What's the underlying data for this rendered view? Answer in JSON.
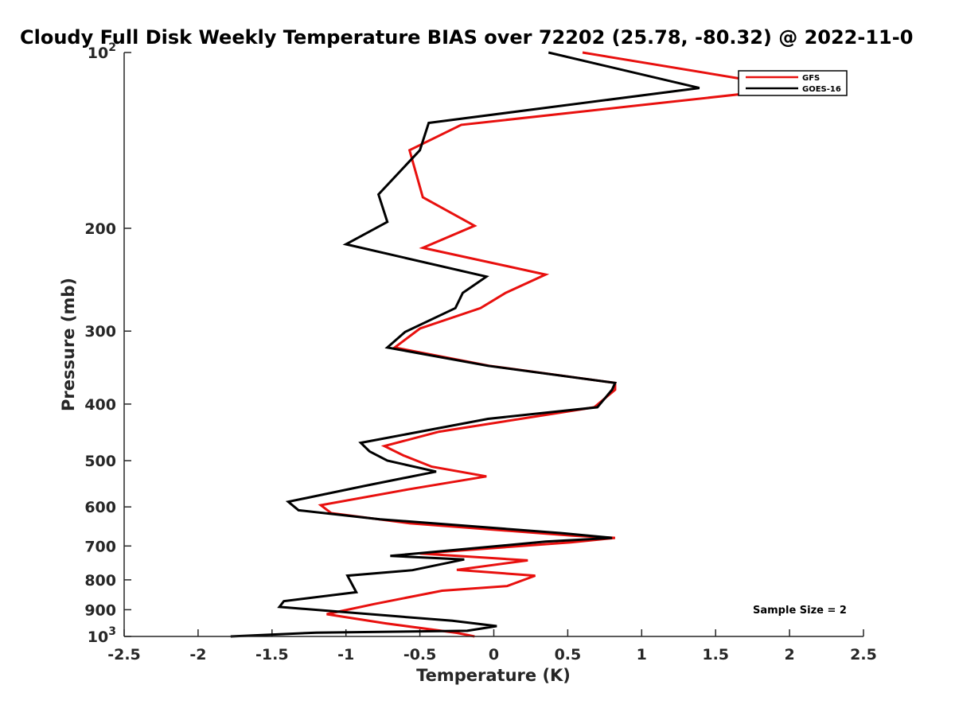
{
  "chart_data": {
    "type": "line",
    "title": "Cloudy Full Disk Weekly Temperature BIAS over 72202 (25.78, -80.32) @ 2022-11-0",
    "xlabel": "Temperature (K)",
    "ylabel": "Pressure (mb)",
    "xlim": [
      -2.5,
      2.5
    ],
    "ylim": [
      100,
      1000
    ],
    "yscale": "log",
    "yreversed": true,
    "xticks": [
      "-2.5",
      "-2",
      "-1.5",
      "-1",
      "-0.5",
      "0",
      "0.5",
      "1",
      "1.5",
      "2",
      "2.5"
    ],
    "yticks": [
      {
        "value": 100,
        "label": "10",
        "sup": "2"
      },
      {
        "value": 200,
        "label": "200",
        "sup": ""
      },
      {
        "value": 300,
        "label": "300",
        "sup": ""
      },
      {
        "value": 400,
        "label": "400",
        "sup": ""
      },
      {
        "value": 500,
        "label": "500",
        "sup": ""
      },
      {
        "value": 600,
        "label": "600",
        "sup": ""
      },
      {
        "value": 700,
        "label": "700",
        "sup": ""
      },
      {
        "value": 800,
        "label": "800",
        "sup": ""
      },
      {
        "value": 900,
        "label": "900",
        "sup": ""
      },
      {
        "value": 1000,
        "label": "10",
        "sup": "3"
      }
    ],
    "legend_position": "top-right",
    "annotation": "Sample Size = 2",
    "series": [
      {
        "name": "GFS",
        "color": "#e8100e",
        "points": [
          [
            0.6,
            100
          ],
          [
            2.05,
            115
          ],
          [
            -0.22,
            133
          ],
          [
            -0.57,
            147
          ],
          [
            -0.48,
            177
          ],
          [
            -0.13,
            198
          ],
          [
            -0.48,
            216
          ],
          [
            0.35,
            240
          ],
          [
            0.08,
            258
          ],
          [
            -0.09,
            274
          ],
          [
            -0.5,
            297
          ],
          [
            -0.67,
            320
          ],
          [
            -0.03,
            344
          ],
          [
            0.82,
            368
          ],
          [
            0.82,
            378
          ],
          [
            0.68,
            405
          ],
          [
            -0.37,
            446
          ],
          [
            -0.74,
            472
          ],
          [
            -0.61,
            490
          ],
          [
            -0.42,
            512
          ],
          [
            -0.05,
            532
          ],
          [
            -0.58,
            560
          ],
          [
            -1.17,
            596
          ],
          [
            -1.1,
            615
          ],
          [
            -0.57,
            640
          ],
          [
            0.53,
            672
          ],
          [
            0.82,
            678
          ],
          [
            0.52,
            690
          ],
          [
            -0.5,
            721
          ],
          [
            0.23,
            741
          ],
          [
            -0.25,
            769
          ],
          [
            0.28,
            787
          ],
          [
            0.09,
            820
          ],
          [
            -0.35,
            835
          ],
          [
            -0.81,
            880
          ],
          [
            -1.13,
            916
          ],
          [
            -0.73,
            950
          ],
          [
            -0.25,
            986
          ],
          [
            -0.13,
            1000
          ]
        ]
      },
      {
        "name": "GOES-16",
        "color": "#000000",
        "points": [
          [
            0.37,
            100
          ],
          [
            1.39,
            115
          ],
          [
            -0.44,
            132
          ],
          [
            -0.5,
            147
          ],
          [
            -0.78,
            175
          ],
          [
            -0.72,
            195
          ],
          [
            -1.0,
            213
          ],
          [
            -0.05,
            242
          ],
          [
            -0.21,
            258
          ],
          [
            -0.26,
            274
          ],
          [
            -0.6,
            301
          ],
          [
            -0.72,
            320
          ],
          [
            -0.04,
            344
          ],
          [
            0.82,
            368
          ],
          [
            0.8,
            378
          ],
          [
            0.7,
            405
          ],
          [
            -0.04,
            424
          ],
          [
            -0.5,
            446
          ],
          [
            -0.9,
            466
          ],
          [
            -0.84,
            482
          ],
          [
            -0.72,
            500
          ],
          [
            -0.39,
            522
          ],
          [
            -0.87,
            552
          ],
          [
            -1.39,
            588
          ],
          [
            -1.32,
            608
          ],
          [
            -0.77,
            630
          ],
          [
            0.45,
            665
          ],
          [
            0.8,
            678
          ],
          [
            0.35,
            688
          ],
          [
            -0.7,
            728
          ],
          [
            -0.2,
            738
          ],
          [
            -0.55,
            770
          ],
          [
            -0.99,
            787
          ],
          [
            -0.93,
            840
          ],
          [
            -1.42,
            870
          ],
          [
            -1.45,
            890
          ],
          [
            -0.28,
            940
          ],
          [
            0.02,
            960
          ],
          [
            -0.18,
            978
          ],
          [
            -1.2,
            985
          ],
          [
            -1.78,
            1000
          ]
        ]
      }
    ]
  }
}
